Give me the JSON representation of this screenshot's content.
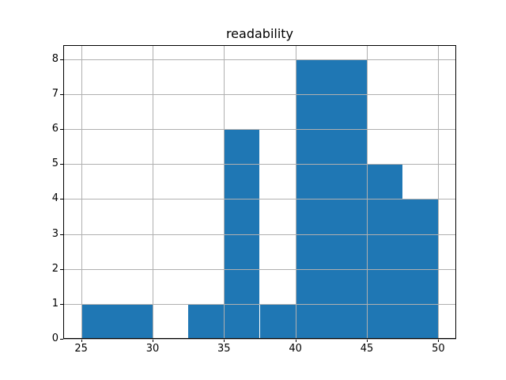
{
  "title": "readability",
  "colors": {
    "bar": "#1f77b4",
    "grid": "#b0b0b0",
    "spine": "#000000",
    "text": "#000000",
    "background": "#ffffff"
  },
  "chart_data": {
    "type": "bar",
    "subtype": "histogram",
    "title": "readability",
    "xlabel": "",
    "ylabel": "",
    "bin_edges": [
      25,
      27.5,
      30,
      32.5,
      35,
      37.5,
      40,
      42.5,
      45,
      47.5,
      50
    ],
    "values": [
      1,
      1,
      0,
      1,
      6,
      1,
      8,
      8,
      5,
      4
    ],
    "x_ticks": [
      25,
      30,
      35,
      40,
      45,
      50
    ],
    "x_tick_labels": [
      "25",
      "30",
      "35",
      "40",
      "45",
      "50"
    ],
    "y_ticks": [
      0,
      1,
      2,
      3,
      4,
      5,
      6,
      7,
      8
    ],
    "y_tick_labels": [
      "0",
      "1",
      "2",
      "3",
      "4",
      "5",
      "6",
      "7",
      "8"
    ],
    "xlim": [
      23.75,
      51.25
    ],
    "ylim": [
      0,
      8.4
    ],
    "grid": true,
    "grid_above_bars": true,
    "legend": false
  }
}
